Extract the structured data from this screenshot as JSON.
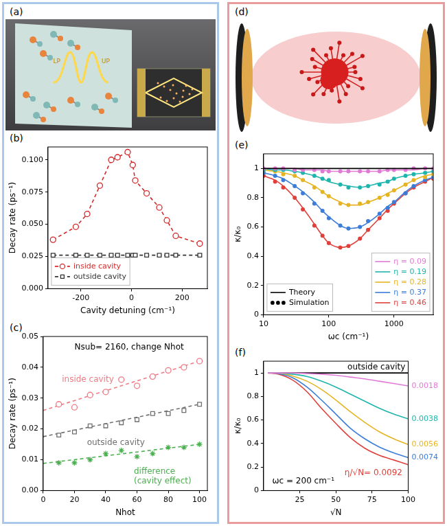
{
  "chart_data": [
    {
      "panel": "(b)",
      "type": "line",
      "x_label": "Cavity detuning (cm⁻¹)",
      "y_label": "Decay rate (ps⁻¹)",
      "x": [
        -310,
        -220,
        -175,
        -125,
        -80,
        -55,
        -15,
        5,
        15,
        60,
        110,
        140,
        175,
        270
      ],
      "series": [
        {
          "name": "inside cavity",
          "color": "#d62728",
          "marker": "circle",
          "line_style": "dashed",
          "values": [
            0.038,
            0.048,
            0.058,
            0.08,
            0.1,
            0.102,
            0.106,
            0.096,
            0.084,
            0.074,
            0.063,
            0.053,
            0.041,
            0.035
          ]
        },
        {
          "name": "outside cavity",
          "color": "#333333",
          "marker": "square",
          "line_style": "dashed",
          "values": [
            0.026,
            0.026,
            0.026,
            0.026,
            0.026,
            0.026,
            0.026,
            0.026,
            0.026,
            0.026,
            0.026,
            0.026,
            0.026,
            0.026
          ]
        }
      ],
      "xlim": [
        -330,
        300
      ],
      "xticks": [
        -200,
        0,
        200
      ],
      "ylim": [
        0,
        0.11
      ],
      "yticks": [
        {
          "value": 0,
          "label": "0.000"
        },
        0.025,
        {
          "value": 0.05,
          "label": "0.050"
        },
        0.075,
        {
          "value": 0.1,
          "label": "0.100"
        }
      ],
      "legend": "lower left",
      "grid": false
    },
    {
      "panel": "(c)",
      "type": "scatter",
      "annotation": "Nsub= 2160, change Nhot",
      "x_label": "Nhot",
      "y_label": "Decay rate (ps⁻¹)",
      "x": [
        10,
        20,
        30,
        40,
        50,
        60,
        70,
        80,
        90,
        100
      ],
      "series": [
        {
          "name": "inside cavity",
          "color": "#ee7b85",
          "marker": "circle",
          "line_style": "none",
          "values": [
            0.028,
            0.027,
            0.031,
            0.032,
            0.036,
            0.034,
            0.037,
            0.039,
            0.04,
            0.042
          ],
          "fit": {
            "x": [
              0,
              100
            ],
            "values": [
              0.026,
              0.042
            ],
            "line_style": "dashed"
          }
        },
        {
          "name": "outside cavity",
          "color": "#707070",
          "marker": "square",
          "line_style": "none",
          "values": [
            0.018,
            0.019,
            0.021,
            0.021,
            0.022,
            0.023,
            0.025,
            0.025,
            0.026,
            0.028
          ],
          "fit": {
            "x": [
              0,
              100
            ],
            "values": [
              0.0175,
              0.028
            ],
            "line_style": "dashed"
          }
        },
        {
          "name": "difference (cavity effect)",
          "color": "#4caf50",
          "marker": "star",
          "line_style": "none",
          "values": [
            0.009,
            0.009,
            0.01,
            0.012,
            0.013,
            0.011,
            0.012,
            0.014,
            0.014,
            0.015
          ],
          "fit": {
            "x": [
              0,
              100
            ],
            "values": [
              0.0088,
              0.015
            ],
            "line_style": "dashed"
          }
        }
      ],
      "xlim": [
        0,
        105
      ],
      "xticks": [
        0,
        20,
        40,
        60,
        80,
        100
      ],
      "ylim": [
        0,
        0.05
      ],
      "yticks": [
        {
          "value": 0,
          "label": "0.00"
        },
        0.01,
        0.02,
        0.03,
        0.04,
        0.05
      ],
      "grid": false
    },
    {
      "panel": "(e)",
      "type": "line",
      "log": "x",
      "x_label": "ωc (cm⁻¹)",
      "y_label": "κ/κ₀",
      "x": [
        10,
        15,
        20,
        30,
        40,
        60,
        80,
        100,
        150,
        200,
        300,
        400,
        600,
        800,
        1000,
        1500,
        2000,
        3000,
        4000
      ],
      "reference_line": {
        "value": 1,
        "color": "#000000"
      },
      "style_legend": [
        "Theory",
        "Simulation"
      ],
      "series": [
        {
          "name": "η = 0.09",
          "color": "#e07ad6",
          "line_style": "solid",
          "values": [
            1.0,
            1.0,
            1.0,
            1.0,
            0.99,
            0.99,
            0.99,
            0.98,
            0.98,
            0.98,
            0.98,
            0.98,
            0.98,
            0.99,
            0.99,
            0.99,
            0.99,
            1.0,
            1.0
          ],
          "simulation": [
            1.0,
            1.0,
            1.0,
            0.99,
            0.99,
            0.99,
            0.98,
            0.98,
            0.98,
            0.98,
            0.98,
            0.98,
            0.98,
            0.99,
            0.99,
            0.99,
            1.0,
            1.0,
            1.0
          ]
        },
        {
          "name": "η = 0.19",
          "color": "#1fb5ad",
          "line_style": "solid",
          "values": [
            1.0,
            0.99,
            0.99,
            0.98,
            0.97,
            0.95,
            0.93,
            0.91,
            0.89,
            0.88,
            0.87,
            0.88,
            0.9,
            0.91,
            0.93,
            0.95,
            0.96,
            0.97,
            0.98
          ],
          "simulation": [
            0.99,
            0.99,
            0.99,
            0.98,
            0.97,
            0.95,
            0.93,
            0.92,
            0.89,
            0.87,
            0.87,
            0.88,
            0.89,
            0.91,
            0.93,
            0.95,
            0.96,
            0.97,
            0.98
          ]
        },
        {
          "name": "η = 0.28",
          "color": "#e6b422",
          "line_style": "solid",
          "values": [
            0.99,
            0.98,
            0.97,
            0.95,
            0.92,
            0.88,
            0.84,
            0.81,
            0.77,
            0.75,
            0.75,
            0.77,
            0.8,
            0.83,
            0.85,
            0.89,
            0.92,
            0.95,
            0.96
          ],
          "simulation": [
            0.99,
            0.98,
            0.96,
            0.95,
            0.92,
            0.87,
            0.84,
            0.81,
            0.76,
            0.75,
            0.76,
            0.77,
            0.8,
            0.82,
            0.85,
            0.89,
            0.92,
            0.94,
            0.96
          ]
        },
        {
          "name": "η = 0.37",
          "color": "#3b7dd8",
          "line_style": "solid",
          "values": [
            0.97,
            0.95,
            0.93,
            0.88,
            0.84,
            0.77,
            0.71,
            0.67,
            0.61,
            0.59,
            0.6,
            0.63,
            0.69,
            0.74,
            0.77,
            0.84,
            0.88,
            0.92,
            0.94
          ],
          "simulation": [
            0.97,
            0.95,
            0.92,
            0.88,
            0.83,
            0.76,
            0.71,
            0.66,
            0.61,
            0.59,
            0.6,
            0.64,
            0.69,
            0.73,
            0.77,
            0.83,
            0.88,
            0.92,
            0.94
          ]
        },
        {
          "name": "η = 0.46",
          "color": "#e0403a",
          "line_style": "solid",
          "values": [
            0.95,
            0.92,
            0.88,
            0.8,
            0.73,
            0.62,
            0.54,
            0.49,
            0.46,
            0.47,
            0.52,
            0.58,
            0.66,
            0.72,
            0.76,
            0.83,
            0.87,
            0.91,
            0.94
          ],
          "simulation": [
            0.95,
            0.91,
            0.87,
            0.8,
            0.72,
            0.61,
            0.54,
            0.49,
            0.46,
            0.47,
            0.52,
            0.58,
            0.66,
            0.71,
            0.76,
            0.83,
            0.87,
            0.91,
            0.93
          ]
        }
      ],
      "xlim": [
        10,
        4000
      ],
      "xticks": [
        10,
        100,
        1000
      ],
      "ylim": [
        0,
        1.1
      ],
      "yticks": [
        0,
        0.2,
        0.4,
        0.6,
        0.8,
        1
      ],
      "legend": "lower right",
      "grid": false
    },
    {
      "panel": "(f)",
      "type": "line",
      "annotation": "ωc = 200 cm⁻¹",
      "x_label": "√N",
      "y_label": "κ/κ₀",
      "x": [
        3,
        10,
        20,
        30,
        40,
        50,
        60,
        70,
        80,
        90,
        100
      ],
      "series": [
        {
          "name": "0.0018",
          "color": "#e07ad6",
          "line_style": "solid",
          "values": [
            1.0,
            1.0,
            1.0,
            0.995,
            0.99,
            0.98,
            0.965,
            0.95,
            0.93,
            0.91,
            0.89
          ]
        },
        {
          "name": "0.0038",
          "color": "#1fb5ad",
          "line_style": "solid",
          "values": [
            1.0,
            1.0,
            0.99,
            0.97,
            0.93,
            0.88,
            0.82,
            0.76,
            0.7,
            0.65,
            0.61
          ]
        },
        {
          "name": "0.0056",
          "color": "#e6b422",
          "line_style": "solid",
          "values": [
            1.0,
            1.0,
            0.975,
            0.93,
            0.86,
            0.77,
            0.67,
            0.58,
            0.5,
            0.44,
            0.39
          ]
        },
        {
          "name": "0.0074",
          "color": "#3b7dd8",
          "line_style": "solid",
          "values": [
            1.0,
            0.995,
            0.96,
            0.88,
            0.77,
            0.65,
            0.53,
            0.44,
            0.37,
            0.32,
            0.28
          ]
        },
        {
          "name": "η/√N= 0.0092",
          "color": "#e0403a",
          "line_style": "solid",
          "values": [
            1.0,
            0.99,
            0.94,
            0.84,
            0.7,
            0.57,
            0.45,
            0.36,
            0.3,
            0.26,
            0.22
          ]
        },
        {
          "name": "outside cavity",
          "color": "#000000",
          "line_style": "solid",
          "values": [
            1,
            1,
            1,
            1,
            1,
            1,
            1,
            1,
            1,
            1,
            1
          ]
        }
      ],
      "xlim": [
        0,
        100
      ],
      "xticks": [
        25,
        50,
        75,
        100
      ],
      "ylim": [
        0,
        1.1
      ],
      "yticks": [
        0,
        0.2,
        0.4,
        0.6,
        0.8,
        1
      ],
      "grid": false
    }
  ],
  "illustrations": [
    {
      "panel": "(a)",
      "labels": [
        "LP",
        "UP"
      ]
    },
    {
      "panel": "(d)"
    }
  ]
}
